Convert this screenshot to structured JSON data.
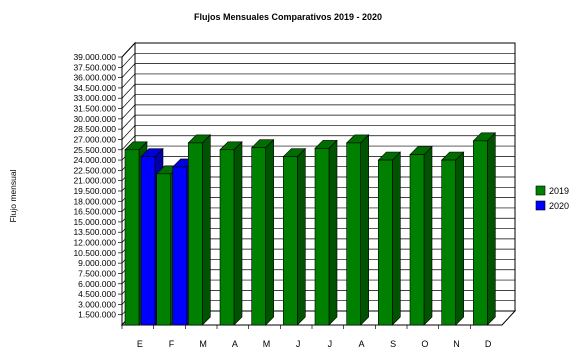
{
  "chart_data": {
    "type": "bar",
    "title": "Flujos Mensuales Comparativos 2019 - 2020",
    "ylabel": "Flujo mensual",
    "xlabel": "",
    "ylim": [
      0,
      39000000
    ],
    "yticks": [
      "1.500.000",
      "3.000.000",
      "4.500.000",
      "6.000.000",
      "7.500.000",
      "9.000.000",
      "10.500.000",
      "12.000.000",
      "13.500.000",
      "15.000.000",
      "16.500.000",
      "18.000.000",
      "19.500.000",
      "21.000.000",
      "22.500.000",
      "24.000.000",
      "25.500.000",
      "27.000.000",
      "28.500.000",
      "30.000.000",
      "31.500.000",
      "33.000.000",
      "34.500.000",
      "36.000.000",
      "37.500.000",
      "39.000.000"
    ],
    "categories": [
      "E",
      "F",
      "M",
      "A",
      "M",
      "J",
      "J",
      "A",
      "S",
      "O",
      "N",
      "D"
    ],
    "series": [
      {
        "name": "2019",
        "color": "#008000",
        "values": [
          25500000,
          22000000,
          26500000,
          25500000,
          25800000,
          24500000,
          25700000,
          26500000,
          24000000,
          24800000,
          24000000,
          26800000
        ]
      },
      {
        "name": "2020",
        "color": "#0000ff",
        "values": [
          24500000,
          23000000,
          null,
          null,
          null,
          null,
          null,
          null,
          null,
          null,
          null,
          null
        ]
      }
    ],
    "grid": true,
    "legend_position": "right"
  }
}
